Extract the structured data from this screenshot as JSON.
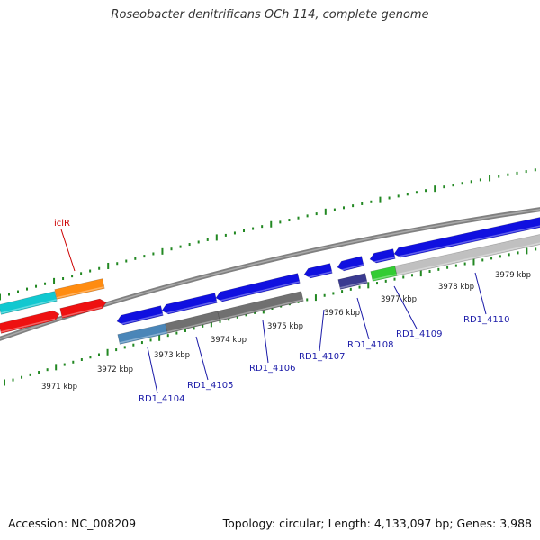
{
  "title": "Roseobacter denitrificans OCh 114, complete genome",
  "accession": "Accession: NC_008209",
  "topology": "Topology: circular; Length: 4,133,097 bp; Genes: 3,988",
  "scale_labels": [
    "3971 kbp",
    "3972 kbp",
    "3973 kbp",
    "3974 kbp",
    "3975 kbp",
    "3976 kbp",
    "3977 kbp",
    "3978 kbp",
    "3979 kbp"
  ],
  "gene_labels": [
    {
      "text": "iclR",
      "color": "#cc0000"
    },
    {
      "text": "RD1_4104",
      "color": "#1a1aa8"
    },
    {
      "text": "RD1_4105",
      "color": "#1a1aa8"
    },
    {
      "text": "RD1_4106",
      "color": "#1a1aa8"
    },
    {
      "text": "RD1_4107",
      "color": "#1a1aa8"
    },
    {
      "text": "RD1_4108",
      "color": "#1a1aa8"
    },
    {
      "text": "RD1_4109",
      "color": "#1a1aa8"
    },
    {
      "text": "RD1_4110",
      "color": "#1a1aa8"
    }
  ],
  "colors": {
    "backbone": "#808080",
    "tick": "#228822",
    "gene_blue": "#1010e0",
    "gene_red": "#ee1111",
    "gene_cyan": "#11c8d0",
    "gene_orange": "#ff8c11",
    "gene_green": "#33cc33",
    "gene_navy": "#3a3a90",
    "gene_steel": "#4a86b8",
    "gene_dark_gray": "#707070",
    "gene_light_gray": "#c0c0c0"
  }
}
